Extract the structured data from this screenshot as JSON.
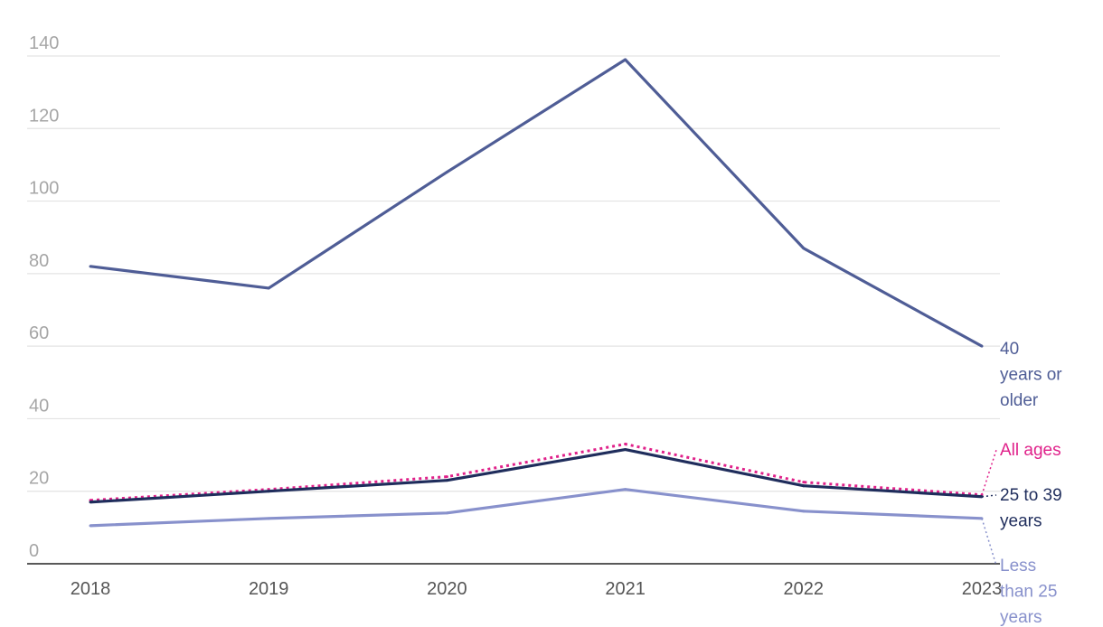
{
  "chart_data": {
    "type": "line",
    "x": [
      "2018",
      "2019",
      "2020",
      "2021",
      "2022",
      "2023"
    ],
    "ylim": [
      0,
      140
    ],
    "y_ticks": [
      "0",
      "20",
      "40",
      "60",
      "80",
      "100",
      "120",
      "140"
    ],
    "grid": true,
    "series": [
      {
        "name": "40 years or older",
        "label_lines": [
          "40",
          "years or",
          "older"
        ],
        "values": [
          82,
          76,
          108,
          139,
          87,
          60
        ],
        "color": "#4f5d96",
        "style": "solid"
      },
      {
        "name": "All ages",
        "label_lines": [
          "All ages"
        ],
        "values": [
          17.5,
          20.5,
          24,
          33,
          22.5,
          19
        ],
        "color": "#e0218a",
        "style": "dotted"
      },
      {
        "name": "25 to 39 years",
        "label_lines": [
          "25 to 39",
          "years"
        ],
        "values": [
          17,
          20,
          23,
          31.5,
          21.5,
          18.5
        ],
        "color": "#1f2d5c",
        "style": "solid"
      },
      {
        "name": "Less than 25 years",
        "label_lines": [
          "Less",
          "than 25",
          "years"
        ],
        "values": [
          10.5,
          12.5,
          14,
          20.5,
          14.5,
          12.5
        ],
        "color": "#8891cc",
        "style": "solid"
      }
    ]
  }
}
